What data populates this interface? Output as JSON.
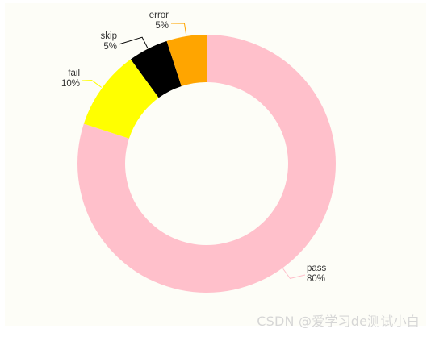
{
  "chart_data": {
    "type": "pie",
    "donut": true,
    "title": "",
    "slices": [
      {
        "name": "pass",
        "value": 80,
        "percent_label": "80%",
        "color": "#FFC0CB"
      },
      {
        "name": "fail",
        "value": 10,
        "percent_label": "10%",
        "color": "#FFFF00"
      },
      {
        "name": "skip",
        "value": 5,
        "percent_label": "5%",
        "color": "#000000"
      },
      {
        "name": "error",
        "value": 5,
        "percent_label": "5%",
        "color": "#FFA500"
      }
    ],
    "legend": "none",
    "labels": "outside"
  },
  "background_color": "#FDFDF7",
  "watermark": {
    "text": "CSDN @爱学习de测试小白"
  }
}
